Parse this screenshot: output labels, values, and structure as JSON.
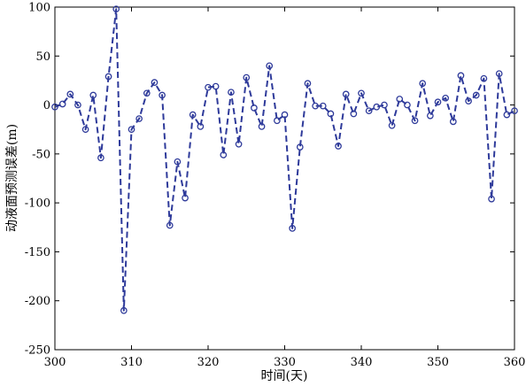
{
  "chart_data": {
    "type": "line",
    "xlabel": "时间(天)",
    "ylabel": "动液面预测误差(m)",
    "xlim": [
      300,
      360
    ],
    "ylim": [
      -250,
      100
    ],
    "xticks": [
      300,
      310,
      320,
      330,
      340,
      350,
      360
    ],
    "yticks": [
      100,
      50,
      0,
      -50,
      -100,
      -150,
      -200,
      -250
    ],
    "grid": false,
    "legend": "none",
    "line_style": "dashed",
    "marker": "circle",
    "color": "#2e3a9a",
    "series": [
      {
        "x": [
          300,
          301,
          302,
          303,
          304,
          305,
          306,
          307,
          308,
          309,
          310,
          311,
          312,
          313,
          314,
          315,
          316,
          317,
          318,
          319,
          320,
          321,
          322,
          323,
          324,
          325,
          326,
          327,
          328,
          329,
          330,
          331,
          332,
          333,
          334,
          335,
          336,
          337,
          338,
          339,
          340,
          341,
          342,
          343,
          344,
          345,
          346,
          347,
          348,
          349,
          350,
          351,
          352,
          353,
          354,
          355,
          356,
          357,
          358,
          359,
          360
        ],
        "values": [
          -2,
          1,
          11,
          0,
          -25,
          10,
          -54,
          29,
          98,
          -210,
          -25,
          -14,
          12,
          23,
          10,
          -123,
          -58,
          -95,
          -10,
          -22,
          18,
          19,
          -51,
          13,
          -40,
          28,
          -3,
          -22,
          40,
          -16,
          -10,
          -126,
          -43,
          22,
          -1,
          -1,
          -9,
          -42,
          11,
          -9,
          12,
          -6,
          -2,
          0,
          -21,
          6,
          0,
          -16,
          22,
          -11,
          3,
          7,
          -17,
          30,
          4,
          10,
          27,
          -96,
          32,
          -10,
          -6
        ]
      }
    ]
  }
}
